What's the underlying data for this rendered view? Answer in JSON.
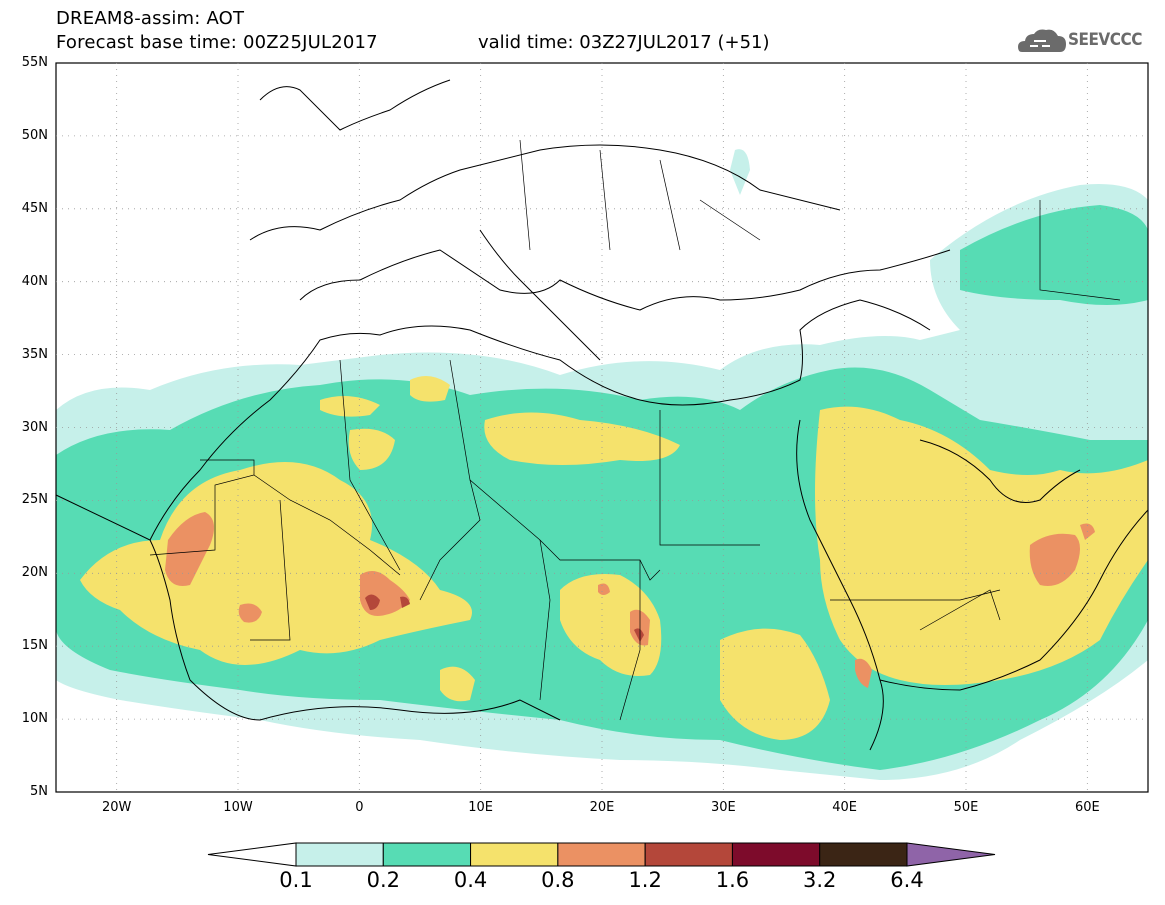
{
  "header": {
    "title_line1": "DREAM8-assim: AOT",
    "title_line2": "Forecast base time: 00Z25JUL2017",
    "valid_time": "valid time: 03Z27JUL2017 (+51)",
    "logo_text": "SEEVCCC"
  },
  "map": {
    "lon_range": [
      -25,
      65
    ],
    "lat_range": [
      5,
      55
    ],
    "lat_ticks": [
      "55N",
      "50N",
      "45N",
      "40N",
      "35N",
      "30N",
      "25N",
      "20N",
      "15N",
      "10N",
      "5N"
    ],
    "lon_ticks": [
      "20W",
      "10W",
      "0",
      "10E",
      "20E",
      "30E",
      "40E",
      "50E",
      "60E"
    ],
    "grid": "dotted"
  },
  "legend": {
    "levels": [
      "0.1",
      "0.2",
      "0.4",
      "0.8",
      "1.2",
      "1.6",
      "3.2",
      "6.4"
    ],
    "colors": [
      "#ffffff",
      "#c6f0ea",
      "#57dcb4",
      "#f5e26c",
      "#eb9163",
      "#b4473a",
      "#7d0b2b",
      "#3b2515",
      "#8f64a8"
    ]
  }
}
